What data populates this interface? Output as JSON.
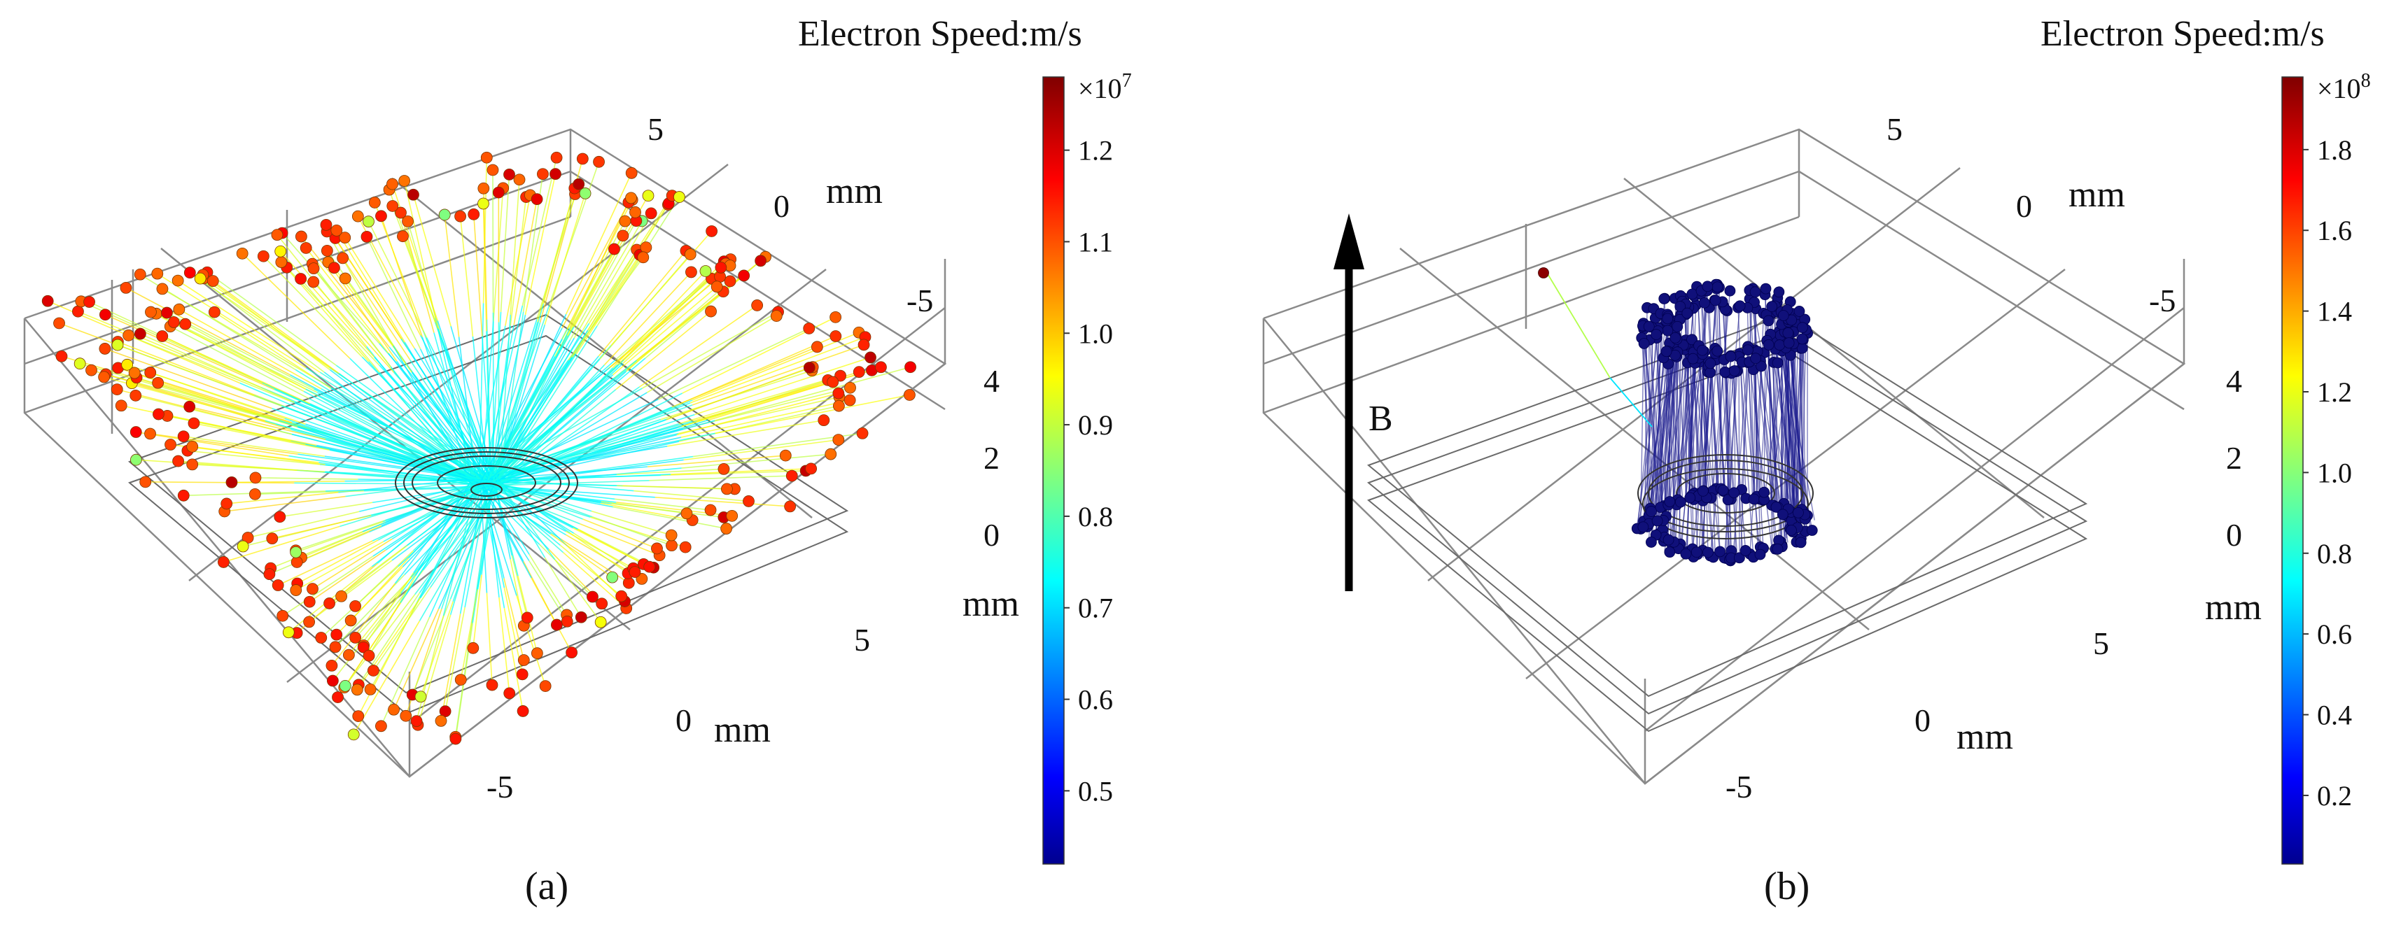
{
  "figure": {
    "caption_a": "(a)",
    "caption_b": "(b)"
  },
  "chart_data": [
    {
      "type": "scatter",
      "panel": "(a)",
      "title": "Electron Speed:m/s",
      "description_kind": "3D particle trajectories colored by speed",
      "colorbar": {
        "exponent_base": "×10",
        "exponent_power": "7",
        "min": 0.42,
        "max": 1.28,
        "ticks": [
          "0.5",
          "0.6",
          "0.7",
          "0.8",
          "0.9",
          "1.0",
          "1.1",
          "1.2"
        ],
        "colormap": "jet"
      },
      "axes": {
        "x": {
          "label": "mm",
          "ticks": [
            "-5",
            "0",
            "5"
          ]
        },
        "y": {
          "label": "mm",
          "ticks": [
            "5",
            "0",
            "-5"
          ]
        },
        "z": {
          "label": "mm",
          "ticks": [
            "4",
            "2",
            "0"
          ]
        }
      },
      "particle_count": 300,
      "pattern": "radial burst from center ring to chamber walls"
    },
    {
      "type": "scatter",
      "panel": "(b)",
      "title": "Electron Speed:m/s",
      "description_kind": "3D particle trajectories colored by speed under magnetic field",
      "colorbar": {
        "exponent_base": "×10",
        "exponent_power": "8",
        "min": 0.03,
        "max": 1.98,
        "ticks": [
          "0.2",
          "0.4",
          "0.6",
          "0.8",
          "1.0",
          "1.2",
          "1.4",
          "1.6",
          "1.8"
        ],
        "colormap": "jet"
      },
      "axes": {
        "x": {
          "label": "mm",
          "ticks": [
            "-5",
            "0",
            "5"
          ]
        },
        "y": {
          "label": "mm",
          "ticks": [
            "5",
            "0",
            "-5"
          ]
        },
        "z": {
          "label": "mm",
          "ticks": [
            "4",
            "2",
            "0"
          ]
        }
      },
      "field_arrow_label": "B",
      "particle_count": 220,
      "pattern": "particles confined in vertical column above central ring"
    }
  ]
}
